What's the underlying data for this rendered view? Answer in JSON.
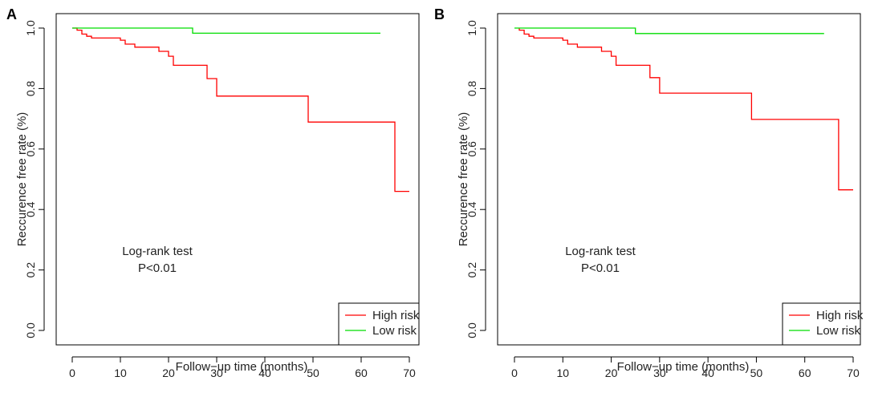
{
  "chart_data": [
    {
      "type": "line",
      "panel": "A",
      "xlabel": "Follow−up time (months)",
      "ylabel": "Reccurence free rate (%)",
      "xlim": [
        0,
        70
      ],
      "ylim": [
        0,
        1
      ],
      "xticks": [
        "0",
        "10",
        "20",
        "30",
        "40",
        "50",
        "60",
        "70"
      ],
      "yticks": [
        "0.0",
        "0.2",
        "0.4",
        "0.6",
        "0.8",
        "1.0"
      ],
      "annotation": [
        "Log-rank test",
        "P<0.01"
      ],
      "legend_position": "bottom-right",
      "series": [
        {
          "name": "High risk",
          "color": "#ff0000",
          "points": [
            [
              0,
              1.0
            ],
            [
              1,
              1.0
            ],
            [
              1,
              0.993
            ],
            [
              2,
              0.993
            ],
            [
              2,
              0.98
            ],
            [
              3,
              0.98
            ],
            [
              3,
              0.973
            ],
            [
              4,
              0.973
            ],
            [
              4,
              0.967
            ],
            [
              10,
              0.967
            ],
            [
              10,
              0.96
            ],
            [
              11,
              0.96
            ],
            [
              11,
              0.947
            ],
            [
              13,
              0.947
            ],
            [
              13,
              0.937
            ],
            [
              18,
              0.937
            ],
            [
              18,
              0.923
            ],
            [
              20,
              0.923
            ],
            [
              20,
              0.907
            ],
            [
              21,
              0.907
            ],
            [
              21,
              0.877
            ],
            [
              28,
              0.877
            ],
            [
              28,
              0.833
            ],
            [
              30,
              0.833
            ],
            [
              30,
              0.775
            ],
            [
              49,
              0.775
            ],
            [
              49,
              0.689
            ],
            [
              67,
              0.689
            ],
            [
              67,
              0.46
            ],
            [
              70,
              0.46
            ]
          ]
        },
        {
          "name": "Low risk",
          "color": "#00dd00",
          "points": [
            [
              0,
              1.0
            ],
            [
              25,
              1.0
            ],
            [
              25,
              0.983
            ],
            [
              64,
              0.983
            ]
          ]
        }
      ]
    },
    {
      "type": "line",
      "panel": "B",
      "xlabel": "Follow−up time (months)",
      "ylabel": "Reccurence free rate (%)",
      "xlim": [
        0,
        70
      ],
      "ylim": [
        0,
        1
      ],
      "xticks": [
        "0",
        "10",
        "20",
        "30",
        "40",
        "50",
        "60",
        "70"
      ],
      "yticks": [
        "0.0",
        "0.2",
        "0.4",
        "0.6",
        "0.8",
        "1.0"
      ],
      "annotation": [
        "Log-rank test",
        "P<0.01"
      ],
      "legend_position": "bottom-right",
      "series": [
        {
          "name": "High risk",
          "color": "#ff0000",
          "points": [
            [
              1,
              1.0
            ],
            [
              1,
              0.993
            ],
            [
              2,
              0.993
            ],
            [
              2,
              0.98
            ],
            [
              3,
              0.98
            ],
            [
              3,
              0.973
            ],
            [
              4,
              0.973
            ],
            [
              4,
              0.967
            ],
            [
              10,
              0.967
            ],
            [
              10,
              0.96
            ],
            [
              11,
              0.96
            ],
            [
              11,
              0.947
            ],
            [
              13,
              0.947
            ],
            [
              13,
              0.937
            ],
            [
              18,
              0.937
            ],
            [
              18,
              0.923
            ],
            [
              20,
              0.923
            ],
            [
              20,
              0.907
            ],
            [
              21,
              0.907
            ],
            [
              21,
              0.877
            ],
            [
              28,
              0.877
            ],
            [
              28,
              0.836
            ],
            [
              30,
              0.836
            ],
            [
              30,
              0.785
            ],
            [
              49,
              0.785
            ],
            [
              49,
              0.698
            ],
            [
              67,
              0.698
            ],
            [
              67,
              0.465
            ],
            [
              70,
              0.465
            ]
          ]
        },
        {
          "name": "Low risk",
          "color": "#00dd00",
          "points": [
            [
              0,
              1.0
            ],
            [
              25,
              1.0
            ],
            [
              25,
              0.982
            ],
            [
              64,
              0.982
            ]
          ]
        }
      ]
    }
  ]
}
